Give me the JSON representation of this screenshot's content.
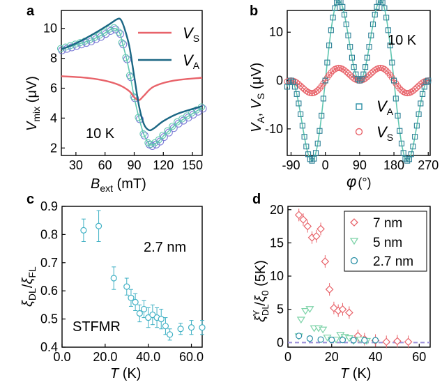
{
  "chart_data": [
    {
      "panel": "a",
      "type": "line",
      "annotation": "10 K",
      "xlabel": "B_ext (mT)",
      "ylabel": "V_mix (μV)",
      "xlim": [
        15,
        160
      ],
      "ylim": [
        1.5,
        11.2
      ],
      "xticks": [
        30,
        60,
        90,
        120,
        150
      ],
      "yticks": [
        2,
        4,
        6,
        8,
        10
      ],
      "legend": [
        "V_S",
        "V_A"
      ],
      "colors": {
        "vs": "#e8636a",
        "va": "#1b6784",
        "data": "#7b7bd6",
        "fit": "#5fc6b0"
      },
      "series": [
        {
          "name": "V_S",
          "x": [
            15,
            40,
            60,
            75,
            85,
            90,
            95,
            100,
            110,
            130,
            160
          ],
          "values": [
            6.8,
            6.7,
            6.5,
            6.2,
            5.8,
            5.4,
            5.2,
            5.5,
            6.1,
            6.5,
            6.7
          ]
        },
        {
          "name": "V_A",
          "x": [
            15,
            30,
            50,
            65,
            72,
            76,
            80,
            85,
            90,
            95,
            100,
            105,
            110,
            120,
            135,
            160
          ],
          "values": [
            8.6,
            9.0,
            9.7,
            10.3,
            10.6,
            10.6,
            10.0,
            8.8,
            6.8,
            4.8,
            3.6,
            3.2,
            3.3,
            3.8,
            4.3,
            4.8
          ]
        },
        {
          "x": [
            15,
            20,
            25,
            30,
            35,
            40,
            45,
            50,
            55,
            60,
            65,
            70,
            75,
            78,
            82,
            86,
            90,
            95,
            100,
            105,
            108,
            112,
            116,
            120,
            125,
            130,
            135,
            140,
            145,
            150,
            155,
            160
          ],
          "values": [
            8.6,
            8.7,
            8.8,
            8.9,
            9.0,
            9.1,
            9.2,
            9.35,
            9.5,
            9.7,
            9.9,
            10.0,
            9.7,
            9.0,
            8.0,
            6.8,
            5.4,
            4.0,
            2.9,
            2.3,
            2.2,
            2.3,
            2.5,
            2.8,
            3.1,
            3.4,
            3.7,
            3.9,
            4.1,
            4.3,
            4.5,
            4.7
          ]
        }
      ]
    },
    {
      "panel": "b",
      "type": "line",
      "annotation": "10 K",
      "xlabel": "φ (°)",
      "ylabel": "V_A, V_S (μV)",
      "xlim": [
        -100,
        275
      ],
      "ylim": [
        -15.5,
        14.5
      ],
      "xticks": [
        -90,
        0,
        90,
        180,
        270
      ],
      "yticks": [
        -10,
        0,
        10
      ],
      "legend": [
        "V_A",
        "V_S"
      ],
      "series": [
        {
          "name": "V_A",
          "amplitude": 14,
          "model": "A·sin(2φ)·cos(φ)"
        },
        {
          "name": "V_S",
          "amplitude": 2.2,
          "model": "A·sin(2φ)·cos(φ)"
        }
      ]
    },
    {
      "panel": "c",
      "type": "scatter",
      "annotation_size": "2.7 nm",
      "annotation_method": "STFMR",
      "xlabel": "T (K)",
      "ylabel": "ξ_DL/ξ_FL",
      "xlim": [
        0,
        65
      ],
      "ylim": [
        0.4,
        0.9
      ],
      "xticks": [
        0,
        20,
        40,
        60
      ],
      "yticks": [
        0.4,
        0.5,
        0.6,
        0.7,
        0.8,
        0.9
      ],
      "x": [
        10,
        17,
        24,
        30,
        32,
        34,
        36,
        38,
        40,
        42,
        44,
        46,
        48,
        50,
        55,
        60,
        65
      ],
      "values": [
        0.815,
        0.83,
        0.645,
        0.615,
        0.575,
        0.56,
        0.52,
        0.535,
        0.505,
        0.515,
        0.505,
        0.5,
        0.475,
        0.445,
        0.465,
        0.47,
        0.47
      ],
      "errors": [
        0.04,
        0.055,
        0.04,
        0.03,
        0.03,
        0.03,
        0.03,
        0.03,
        0.035,
        0.035,
        0.035,
        0.035,
        0.03,
        0.02,
        0.02,
        0.025,
        0.025
      ]
    },
    {
      "panel": "d",
      "type": "scatter",
      "xlabel": "T (K)",
      "ylabel": "ξ^Y_DL/ξ_0 (5K)",
      "xlim": [
        0,
        65
      ],
      "ylim": [
        -0.7,
        20.5
      ],
      "xticks": [
        0,
        20,
        40,
        60
      ],
      "yticks": [
        0,
        5,
        10,
        15,
        20
      ],
      "baseline": 0,
      "series": [
        {
          "name": "7 nm",
          "x": [
            5,
            7,
            9,
            11,
            13,
            15,
            17,
            19,
            21,
            23,
            25,
            28,
            32,
            35,
            40,
            45,
            50,
            55
          ],
          "values": [
            19.2,
            18.5,
            17.5,
            15.8,
            16.0,
            17.1,
            12.2,
            8.0,
            5.2,
            4.8,
            5.0,
            4.5,
            1.0,
            0.5,
            0.3,
            0.1,
            0.2,
            0.1
          ]
        },
        {
          "name": "5 nm",
          "x": [
            5,
            6,
            8,
            10,
            12,
            14,
            16,
            18,
            20,
            22,
            24,
            26,
            28,
            30,
            33,
            36
          ],
          "values": [
            1.0,
            3.5,
            4.8,
            5.1,
            2.2,
            2.2,
            2.0,
            0.8,
            0.5,
            0.5,
            1.2,
            0.9,
            0.7,
            0.3,
            0.5,
            0.3
          ]
        },
        {
          "name": "2.7 nm",
          "x": [
            5,
            10,
            15,
            20,
            25,
            30,
            35,
            40
          ],
          "values": [
            1.0,
            0.6,
            0.45,
            0.4,
            0.38,
            0.35,
            0.33,
            0.35
          ]
        }
      ]
    }
  ],
  "labels": {
    "a": "a",
    "b": "b",
    "c": "c",
    "d": "d",
    "a_cond": "10 K",
    "b_cond": "10 K",
    "c_size": "2.7 nm",
    "c_method": "STFMR",
    "legend_a_1_main": "V",
    "legend_a_1_sub": "S",
    "legend_a_2_main": "V",
    "legend_a_2_sub": "A",
    "legend_b_1_main": "V",
    "legend_b_1_sub": "A",
    "legend_b_2_main": "V",
    "legend_b_2_sub": "S",
    "legend_d": [
      "7 nm",
      "5 nm",
      "2.7 nm"
    ],
    "xlab_a_main": "B",
    "xlab_a_sub": "ext",
    "xlab_a_unit": " (mT)",
    "ylab_a_main": "V",
    "ylab_a_sub": "mix",
    "ylab_a_unit": " (μV)",
    "xlab_b_main": "φ",
    "xlab_b_unit": "(°)",
    "ylab_b": "V_A, V_S (μV)",
    "xlab_c_main": "T",
    "xlab_c_unit": " (K)",
    "ylab_c": "ξ_DL/ξ_FL",
    "xlab_d_main": "T",
    "xlab_d_unit": " (K)",
    "ylab_d": "ξ^Y_DL/ξ_0 (5K)"
  }
}
